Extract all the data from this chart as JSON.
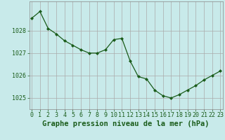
{
  "x": [
    0,
    1,
    2,
    3,
    4,
    5,
    6,
    7,
    8,
    9,
    10,
    11,
    12,
    13,
    14,
    15,
    16,
    17,
    18,
    19,
    20,
    21,
    22,
    23
  ],
  "y": [
    1028.55,
    1028.85,
    1028.1,
    1027.85,
    1027.55,
    1027.35,
    1027.15,
    1027.0,
    1027.0,
    1027.15,
    1027.6,
    1027.65,
    1026.65,
    1025.95,
    1025.85,
    1025.35,
    1025.1,
    1025.0,
    1025.15,
    1025.35,
    1025.55,
    1025.8,
    1026.0,
    1026.2
  ],
  "line_color": "#1a5c1a",
  "marker": "D",
  "marker_size": 2.0,
  "bg_color": "#c8eaea",
  "grid_color": "#aaaaaa",
  "xlabel": "Graphe pression niveau de la mer (hPa)",
  "xlabel_color": "#1a5c1a",
  "xlabel_fontsize": 7.5,
  "tick_color": "#1a5c1a",
  "tick_fontsize": 6.0,
  "yticks": [
    1025,
    1026,
    1027,
    1028
  ],
  "xticks": [
    0,
    1,
    2,
    3,
    4,
    5,
    6,
    7,
    8,
    9,
    10,
    11,
    12,
    13,
    14,
    15,
    16,
    17,
    18,
    19,
    20,
    21,
    22,
    23
  ],
  "ylim": [
    1024.5,
    1029.3
  ],
  "xlim": [
    -0.3,
    23.3
  ]
}
